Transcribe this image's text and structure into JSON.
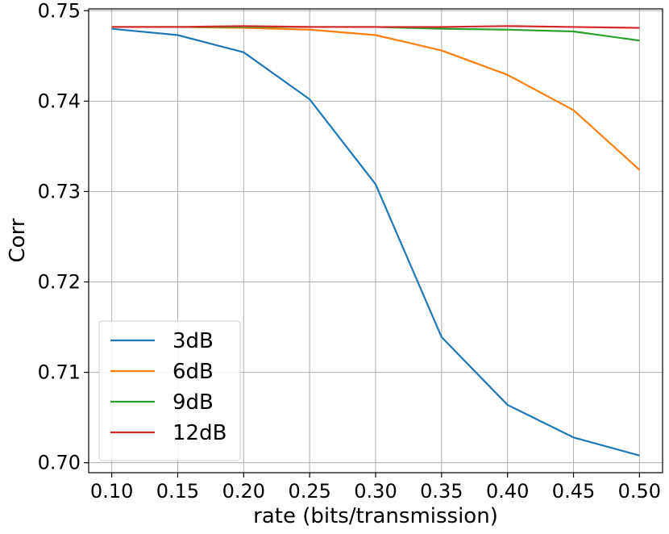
{
  "chart_data": {
    "type": "line",
    "xlabel": "rate (bits/transmission)",
    "ylabel": "Corr",
    "x": [
      0.1,
      0.15,
      0.2,
      0.25,
      0.3,
      0.35,
      0.4,
      0.45,
      0.5
    ],
    "x_tick_labels": [
      "0.10",
      "0.15",
      "0.20",
      "0.25",
      "0.30",
      "0.35",
      "0.40",
      "0.45",
      "0.50"
    ],
    "y_ticks": [
      0.7,
      0.71,
      0.72,
      0.73,
      0.74,
      0.75
    ],
    "y_tick_labels": [
      "0.70",
      "0.71",
      "0.72",
      "0.73",
      "0.74",
      "0.75"
    ],
    "xlim": [
      0.0825,
      0.5175
    ],
    "ylim": [
      0.6989,
      0.7502
    ],
    "grid": true,
    "legend_position": "lower-left",
    "series": [
      {
        "name": "3dB",
        "color": "#1f77b4",
        "values": [
          0.748,
          0.7473,
          0.7454,
          0.7402,
          0.7308,
          0.7139,
          0.7064,
          0.7028,
          0.7008
        ]
      },
      {
        "name": "6dB",
        "color": "#ff7f0e",
        "values": [
          0.7482,
          0.7482,
          0.7481,
          0.7479,
          0.7473,
          0.7456,
          0.7429,
          0.739,
          0.7324
        ]
      },
      {
        "name": "9dB",
        "color": "#2ca02c",
        "values": [
          0.7482,
          0.7482,
          0.7482,
          0.7482,
          0.7482,
          0.748,
          0.7479,
          0.7477,
          0.7467
        ]
      },
      {
        "name": "12dB",
        "color": "#d62728",
        "values": [
          0.7482,
          0.7482,
          0.7483,
          0.7482,
          0.7482,
          0.7482,
          0.7483,
          0.7482,
          0.7481
        ]
      }
    ]
  }
}
